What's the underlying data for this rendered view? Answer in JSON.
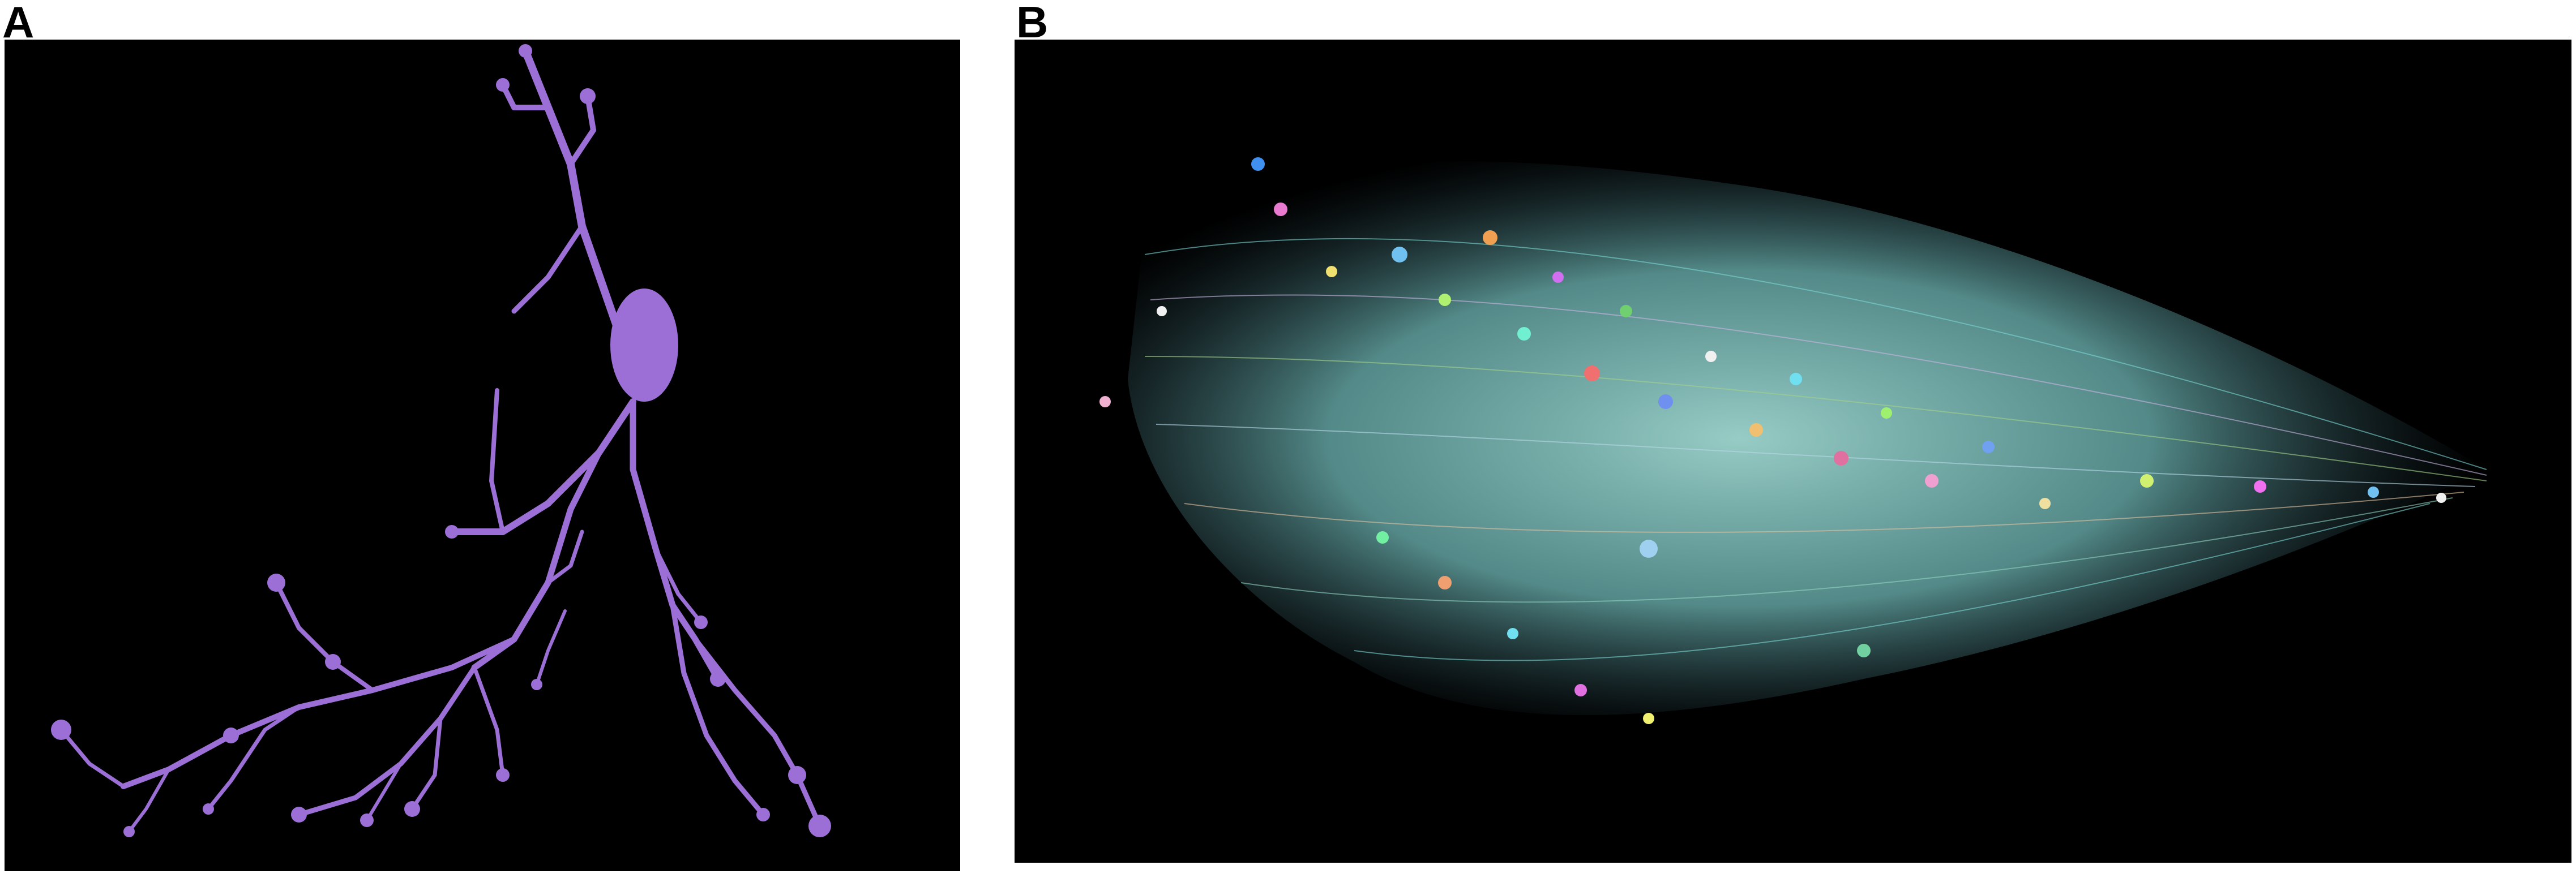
{
  "panels": [
    {
      "label": "A",
      "background": "#000000",
      "accent": "#9b6fd6"
    },
    {
      "label": "B",
      "background": "#000000",
      "fiber_colors": [
        "#7ad7d4",
        "#8fd3c0",
        "#b7d9e8",
        "#c8b6e2",
        "#a4d28a",
        "#e0c0a0"
      ]
    }
  ]
}
